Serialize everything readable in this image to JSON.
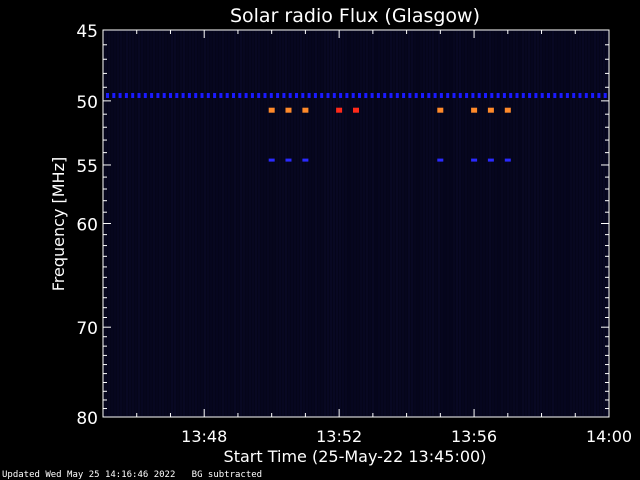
{
  "chart_data": {
    "type": "heatmap",
    "title": "Solar radio Flux (Glasgow)",
    "xlabel": "Start Time (25-May-22 13:45:00)",
    "ylabel": "Frequency [MHz]",
    "x_ticks": [
      "13:48",
      "13:52",
      "13:56",
      "14:00"
    ],
    "x_tick_minutes": [
      3,
      7,
      11,
      15
    ],
    "x_range_minutes": [
      0,
      15
    ],
    "y_ticks": [
      45,
      50,
      55,
      60,
      70,
      80
    ],
    "y_range_mhz": [
      45,
      80
    ],
    "y_scale": "log",
    "background_color": "#05051a",
    "features": [
      {
        "name": "continuous-emission-line",
        "freq_mhz": 49.6,
        "t_start": 0,
        "t_end": 15,
        "color": "#1a1aff"
      },
      {
        "name": "burst",
        "freq_mhz": 50.7,
        "times": [
          5.0,
          5.5,
          6.0
        ],
        "color": "#ff8a2a"
      },
      {
        "name": "burst",
        "freq_mhz": 50.7,
        "times": [
          7.0,
          7.5
        ],
        "color": "#ff2a1a"
      },
      {
        "name": "burst",
        "freq_mhz": 50.7,
        "times": [
          10.0
        ],
        "color": "#ff8a2a"
      },
      {
        "name": "burst",
        "freq_mhz": 50.7,
        "times": [
          11.0,
          11.5,
          12.0
        ],
        "color": "#ff8a2a"
      },
      {
        "name": "harmonic-dots",
        "freq_mhz": 54.6,
        "times": [
          5.0,
          5.5,
          6.0,
          10.0,
          11.0,
          11.5,
          12.0
        ],
        "color": "#2a2aff"
      }
    ]
  },
  "footer": {
    "updated": "Updated Wed May 25 14:16:46 2022",
    "note": "BG subtracted"
  }
}
